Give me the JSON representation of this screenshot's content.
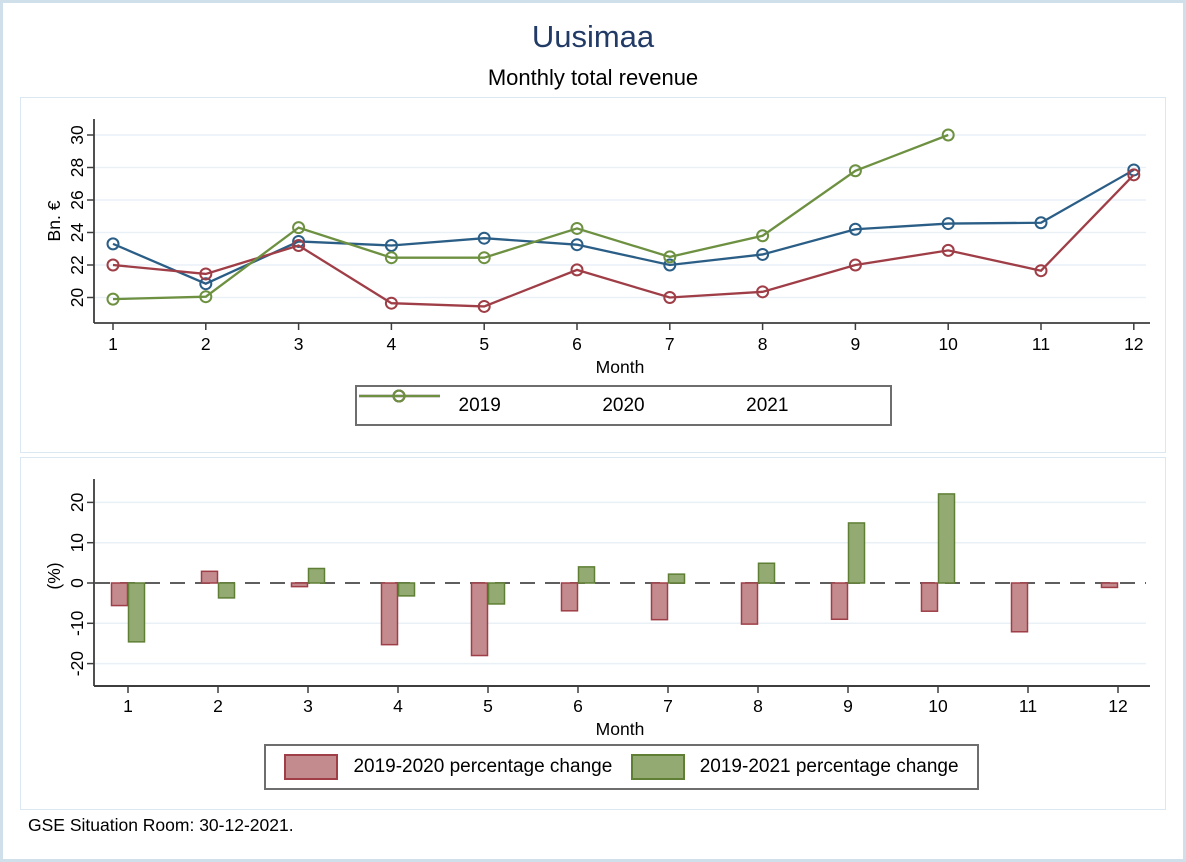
{
  "title": "Uusimaa",
  "subtitle": "Monthly total revenue",
  "footer": "GSE Situation Room: 30-12-2021.",
  "chart_data": [
    {
      "type": "line",
      "title": "Monthly total revenue",
      "xlabel": "Month",
      "ylabel": "Bn. €",
      "x": [
        1,
        2,
        3,
        4,
        5,
        6,
        7,
        8,
        9,
        10,
        11,
        12
      ],
      "yticks": [
        20,
        22,
        24,
        26,
        28,
        30
      ],
      "ylim": [
        18.4,
        31
      ],
      "grid": true,
      "legend_position": "bottom",
      "series": [
        {
          "name": "2019",
          "color": "#2b5e86",
          "values": [
            23.3,
            20.85,
            23.45,
            23.2,
            23.65,
            23.25,
            22.0,
            22.65,
            24.2,
            24.55,
            24.6,
            27.85
          ]
        },
        {
          "name": "2020",
          "color": "#9f3e47",
          "values": [
            22.0,
            21.45,
            23.2,
            19.65,
            19.45,
            21.7,
            20.0,
            20.35,
            22.0,
            22.9,
            21.65,
            27.55
          ]
        },
        {
          "name": "2021",
          "color": "#6d9041",
          "values": [
            19.9,
            20.05,
            24.3,
            22.45,
            22.45,
            24.25,
            22.5,
            23.8,
            27.8,
            30.0,
            null,
            null
          ]
        }
      ]
    },
    {
      "type": "bar",
      "xlabel": "Month",
      "ylabel": "(%)",
      "x": [
        1,
        2,
        3,
        4,
        5,
        6,
        7,
        8,
        9,
        10,
        11,
        12
      ],
      "yticks": [
        -20,
        -10,
        0,
        10,
        20
      ],
      "ylim": [
        -25.8,
        25.8
      ],
      "zero_line": "dashed",
      "grid": true,
      "legend_position": "bottom",
      "series": [
        {
          "name": "2019-2020 percentage change",
          "fill": "#c48b8f",
          "stroke": "#9f3e47",
          "values": [
            -5.6,
            2.9,
            -0.9,
            -15.3,
            -18.0,
            -6.9,
            -9.1,
            -10.2,
            -9.0,
            -7.0,
            -12.1,
            -1.1
          ]
        },
        {
          "name": "2019-2021 percentage change",
          "fill": "#93ab72",
          "stroke": "#5f7f35",
          "values": [
            -14.6,
            -3.7,
            3.6,
            -3.2,
            -5.2,
            4.0,
            2.2,
            4.9,
            14.9,
            22.1,
            null,
            null
          ]
        }
      ]
    }
  ]
}
